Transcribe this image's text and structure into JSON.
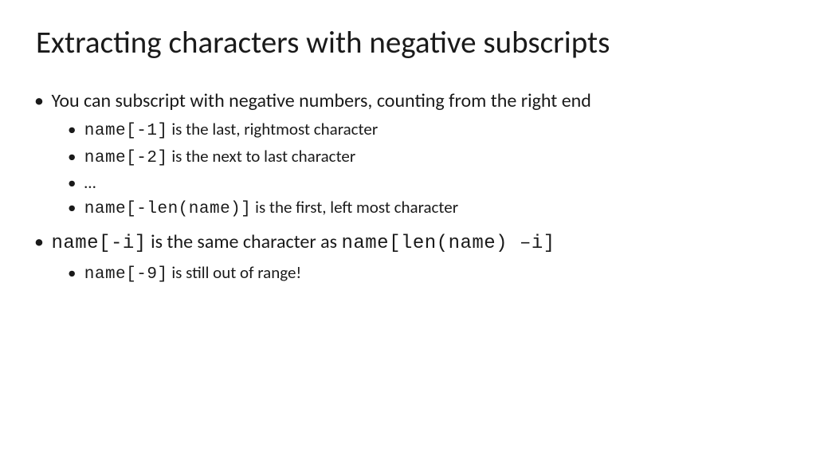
{
  "colors": {
    "background": "#ffffff",
    "text": "#1a1a1a"
  },
  "fonts": {
    "body": "Calibri",
    "code": "Courier New"
  },
  "title": "Extracting characters with negative subscripts",
  "b1": {
    "text": "You can subscript with negative numbers, counting from the right end",
    "sub": {
      "s1_code": "name[-1]",
      "s1_tail": " is the last, rightmost character",
      "s2_code": "name[-2]",
      "s2_tail": " is the next to last character",
      "s3": "…",
      "s4_code": "name[-len(name)]",
      "s4_tail": " is the first, left most character"
    }
  },
  "b2": {
    "code1": "name[-i]",
    "mid": " is the same character as ",
    "code2": "name[len(name) –i]",
    "sub": {
      "s1_code": "name[-9]",
      "s1_tail": " is still out of range!"
    }
  }
}
